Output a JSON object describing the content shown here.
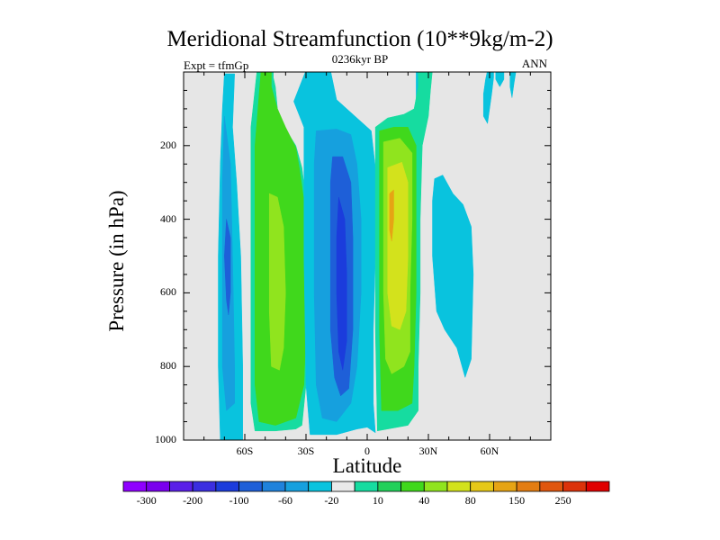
{
  "chart_data": {
    "type": "filled-contour",
    "title": "Meridional Streamfunction (10**9kg/m-2)",
    "subtitle": "0236kyr BP",
    "left_string": "Expt = tfmGp",
    "right_string": "ANN",
    "xlabel": "Latitude",
    "ylabel": "Pressure (in hPa)",
    "x_range": [
      -90,
      90
    ],
    "y_range": [
      0,
      1000
    ],
    "y_reversed": true,
    "x_ticks": [
      {
        "value": -60,
        "label": "60S"
      },
      {
        "value": -30,
        "label": "30S"
      },
      {
        "value": 0,
        "label": "0"
      },
      {
        "value": 30,
        "label": "30N"
      },
      {
        "value": 60,
        "label": "60N"
      }
    ],
    "y_ticks": [
      {
        "value": 200,
        "label": "200"
      },
      {
        "value": 400,
        "label": "400"
      },
      {
        "value": 600,
        "label": "600"
      },
      {
        "value": 800,
        "label": "800"
      },
      {
        "value": 1000,
        "label": "1000"
      }
    ],
    "background_color": "#e6e6e6",
    "colorbar": {
      "colors": [
        "#8f00ff",
        "#7a00ee",
        "#5a1fe8",
        "#3b2ee0",
        "#1b3cdc",
        "#1e5fd8",
        "#1f82dc",
        "#16a0de",
        "#09c3de",
        "#eaeaea",
        "#16dca0",
        "#22d05a",
        "#40d81c",
        "#90e41e",
        "#d3e21c",
        "#e6c818",
        "#e6a414",
        "#e37d12",
        "#e0560e",
        "#dc320a",
        "#e00000"
      ],
      "labels": [
        {
          "after_box": 1,
          "text": "-300"
        },
        {
          "after_box": 3,
          "text": "-200"
        },
        {
          "after_box": 5,
          "text": "-100"
        },
        {
          "after_box": 7,
          "text": "-60"
        },
        {
          "after_box": 9,
          "text": "-20"
        },
        {
          "after_box": 11,
          "text": "10"
        },
        {
          "after_box": 13,
          "text": "40"
        },
        {
          "after_box": 15,
          "text": "80"
        },
        {
          "after_box": 17,
          "text": "150"
        },
        {
          "after_box": 19,
          "text": "250"
        }
      ]
    },
    "fields": [
      {
        "level": -20,
        "color": "#09c3de",
        "polygon": [
          [
            -70,
            5
          ],
          [
            -65,
            5
          ],
          [
            -66,
            150
          ],
          [
            -64,
            300
          ],
          [
            -62,
            500
          ],
          [
            -61,
            800
          ],
          [
            -61,
            1000
          ],
          [
            -72,
            1000
          ],
          [
            -73,
            800
          ],
          [
            -73,
            500
          ],
          [
            -72,
            250
          ],
          [
            -71,
            100
          ]
        ]
      },
      {
        "level": -60,
        "color": "#16a0de",
        "polygon": [
          [
            -70,
            120
          ],
          [
            -67,
            250
          ],
          [
            -66,
            500
          ],
          [
            -65,
            800
          ],
          [
            -65,
            900
          ],
          [
            -69,
            920
          ],
          [
            -71,
            800
          ],
          [
            -71,
            500
          ],
          [
            -71,
            300
          ]
        ]
      },
      {
        "level": -100,
        "color": "#1e5fd8",
        "polygon": [
          [
            -69,
            400
          ],
          [
            -67,
            450
          ],
          [
            -67,
            600
          ],
          [
            -68,
            660
          ],
          [
            -69,
            620
          ],
          [
            -70,
            500
          ]
        ]
      },
      {
        "level": 10,
        "color": "#16dca0",
        "polygon": [
          [
            -54,
            -5
          ],
          [
            -46,
            -5
          ],
          [
            -46,
            15
          ],
          [
            -45,
            40
          ],
          [
            -44,
            100
          ],
          [
            -40,
            155
          ],
          [
            -35,
            200
          ],
          [
            -32,
            260
          ],
          [
            -30,
            350
          ],
          [
            -29,
            500
          ],
          [
            -29,
            700
          ],
          [
            -30,
            850
          ],
          [
            -32,
            960
          ],
          [
            -35,
            970
          ],
          [
            -45,
            975
          ],
          [
            -55,
            975
          ],
          [
            -57,
            900
          ],
          [
            -57,
            500
          ],
          [
            -57,
            150
          ]
        ]
      },
      {
        "level": 40,
        "color": "#40d81c",
        "polygon": [
          [
            -52,
            -5
          ],
          [
            -47,
            -5
          ],
          [
            -47,
            40
          ],
          [
            -44,
            100
          ],
          [
            -40,
            150
          ],
          [
            -35,
            205
          ],
          [
            -33,
            270
          ],
          [
            -31,
            350
          ],
          [
            -30,
            500
          ],
          [
            -30,
            700
          ],
          [
            -31,
            850
          ],
          [
            -35,
            940
          ],
          [
            -45,
            960
          ],
          [
            -53,
            950
          ],
          [
            -55,
            850
          ],
          [
            -55,
            500
          ],
          [
            -55,
            200
          ]
        ]
      },
      {
        "level": 80,
        "color": "#90e41e",
        "polygon": [
          [
            -48,
            330
          ],
          [
            -44,
            340
          ],
          [
            -41,
            420
          ],
          [
            -40,
            600
          ],
          [
            -41,
            750
          ],
          [
            -43,
            810
          ],
          [
            -47,
            800
          ],
          [
            -48,
            650
          ],
          [
            -48,
            450
          ]
        ]
      },
      {
        "level": -20,
        "color": "#09c3de",
        "polygon": [
          [
            -30,
            -5
          ],
          [
            -18,
            -5
          ],
          [
            -15,
            75
          ],
          [
            -10,
            100
          ],
          [
            -6,
            120
          ],
          [
            -2,
            140
          ],
          [
            2,
            160
          ],
          [
            4,
            260
          ],
          [
            4,
            500
          ],
          [
            3,
            700
          ],
          [
            3,
            900
          ],
          [
            4,
            980
          ],
          [
            0,
            965
          ],
          [
            -5,
            970
          ],
          [
            -15,
            985
          ],
          [
            -28,
            985
          ],
          [
            -30,
            850
          ],
          [
            -31,
            500
          ],
          [
            -31,
            230
          ],
          [
            -31,
            150
          ],
          [
            -36,
            80
          ]
        ]
      },
      {
        "level": -60,
        "color": "#16a0de",
        "polygon": [
          [
            -25,
            160
          ],
          [
            -15,
            155
          ],
          [
            -8,
            170
          ],
          [
            -5,
            250
          ],
          [
            -3,
            400
          ],
          [
            -3,
            600
          ],
          [
            -5,
            800
          ],
          [
            -8,
            900
          ],
          [
            -15,
            950
          ],
          [
            -22,
            940
          ],
          [
            -25,
            850
          ],
          [
            -26,
            600
          ],
          [
            -26,
            400
          ],
          [
            -26,
            250
          ]
        ]
      },
      {
        "level": -100,
        "color": "#1e5fd8",
        "polygon": [
          [
            -17,
            230
          ],
          [
            -12,
            230
          ],
          [
            -8,
            300
          ],
          [
            -7,
            450
          ],
          [
            -7,
            700
          ],
          [
            -9,
            860
          ],
          [
            -13,
            880
          ],
          [
            -16,
            830
          ],
          [
            -18,
            700
          ],
          [
            -18,
            450
          ],
          [
            -18,
            300
          ]
        ]
      },
      {
        "level": -200,
        "color": "#1b3cdc",
        "polygon": [
          [
            -14,
            340
          ],
          [
            -11,
            400
          ],
          [
            -10,
            550
          ],
          [
            -10,
            730
          ],
          [
            -12,
            810
          ],
          [
            -14,
            760
          ],
          [
            -15,
            600
          ],
          [
            -15,
            450
          ]
        ]
      },
      {
        "level": -20,
        "color": "#09c3de",
        "polygon": [
          [
            24,
            -5
          ],
          [
            30,
            -5
          ],
          [
            30,
            30
          ],
          [
            28,
            90
          ],
          [
            24,
            125
          ]
        ]
      },
      {
        "level": 10,
        "color": "#16dca0",
        "polygon": [
          [
            4,
            150
          ],
          [
            10,
            125
          ],
          [
            18,
            115
          ],
          [
            23,
            100
          ],
          [
            25,
            40
          ],
          [
            25,
            -5
          ],
          [
            32,
            -5
          ],
          [
            31,
            50
          ],
          [
            30,
            120
          ],
          [
            27,
            200
          ],
          [
            26,
            400
          ],
          [
            26,
            600
          ],
          [
            25,
            800
          ],
          [
            25,
            920
          ],
          [
            20,
            960
          ],
          [
            10,
            970
          ],
          [
            5,
            975
          ],
          [
            4,
            700
          ],
          [
            4,
            400
          ]
        ]
      },
      {
        "level": 40,
        "color": "#40d81c",
        "polygon": [
          [
            6,
            160
          ],
          [
            13,
            150
          ],
          [
            20,
            150
          ],
          [
            24,
            200
          ],
          [
            24,
            400
          ],
          [
            24,
            600
          ],
          [
            23,
            800
          ],
          [
            22,
            900
          ],
          [
            15,
            920
          ],
          [
            7,
            920
          ],
          [
            6,
            700
          ],
          [
            6,
            400
          ]
        ]
      },
      {
        "level": 80,
        "color": "#90e41e",
        "polygon": [
          [
            8,
            190
          ],
          [
            16,
            180
          ],
          [
            22,
            220
          ],
          [
            22,
            400
          ],
          [
            21,
            600
          ],
          [
            21,
            760
          ],
          [
            18,
            800
          ],
          [
            12,
            820
          ],
          [
            9,
            780
          ],
          [
            8,
            600
          ],
          [
            8,
            350
          ]
        ]
      },
      {
        "level": 150,
        "color": "#d3e21c",
        "polygon": [
          [
            10,
            260
          ],
          [
            17,
            245
          ],
          [
            20,
            300
          ],
          [
            20,
            500
          ],
          [
            19,
            650
          ],
          [
            16,
            700
          ],
          [
            12,
            690
          ],
          [
            10,
            600
          ],
          [
            10,
            400
          ]
        ]
      },
      {
        "level": 250,
        "color": "#e6a414",
        "polygon": [
          [
            11,
            330
          ],
          [
            13,
            320
          ],
          [
            13,
            400
          ],
          [
            12,
            460
          ],
          [
            11,
            430
          ]
        ]
      },
      {
        "level": -20,
        "color": "#09c3de",
        "polygon": [
          [
            33,
            290
          ],
          [
            37,
            280
          ],
          [
            42,
            330
          ],
          [
            47,
            360
          ],
          [
            51,
            420
          ],
          [
            52,
            550
          ],
          [
            51,
            780
          ],
          [
            48,
            830
          ],
          [
            44,
            750
          ],
          [
            38,
            700
          ],
          [
            34,
            650
          ],
          [
            32,
            500
          ],
          [
            32,
            350
          ]
        ]
      },
      {
        "level": -20,
        "color": "#09c3de",
        "polygon": [
          [
            59,
            -5
          ],
          [
            62,
            -5
          ],
          [
            62,
            15
          ],
          [
            61,
            60
          ],
          [
            60,
            100
          ],
          [
            59,
            140
          ],
          [
            57,
            120
          ],
          [
            57,
            60
          ],
          [
            58,
            20
          ]
        ]
      },
      {
        "level": -20,
        "color": "#09c3de",
        "polygon": [
          [
            63,
            -5
          ],
          [
            67,
            -5
          ],
          [
            67,
            20
          ],
          [
            65,
            40
          ],
          [
            63,
            20
          ]
        ]
      },
      {
        "level": -20,
        "color": "#09c3de",
        "polygon": [
          [
            70,
            -5
          ],
          [
            73,
            -5
          ],
          [
            72,
            30
          ],
          [
            71,
            70
          ],
          [
            70,
            40
          ]
        ]
      }
    ]
  }
}
